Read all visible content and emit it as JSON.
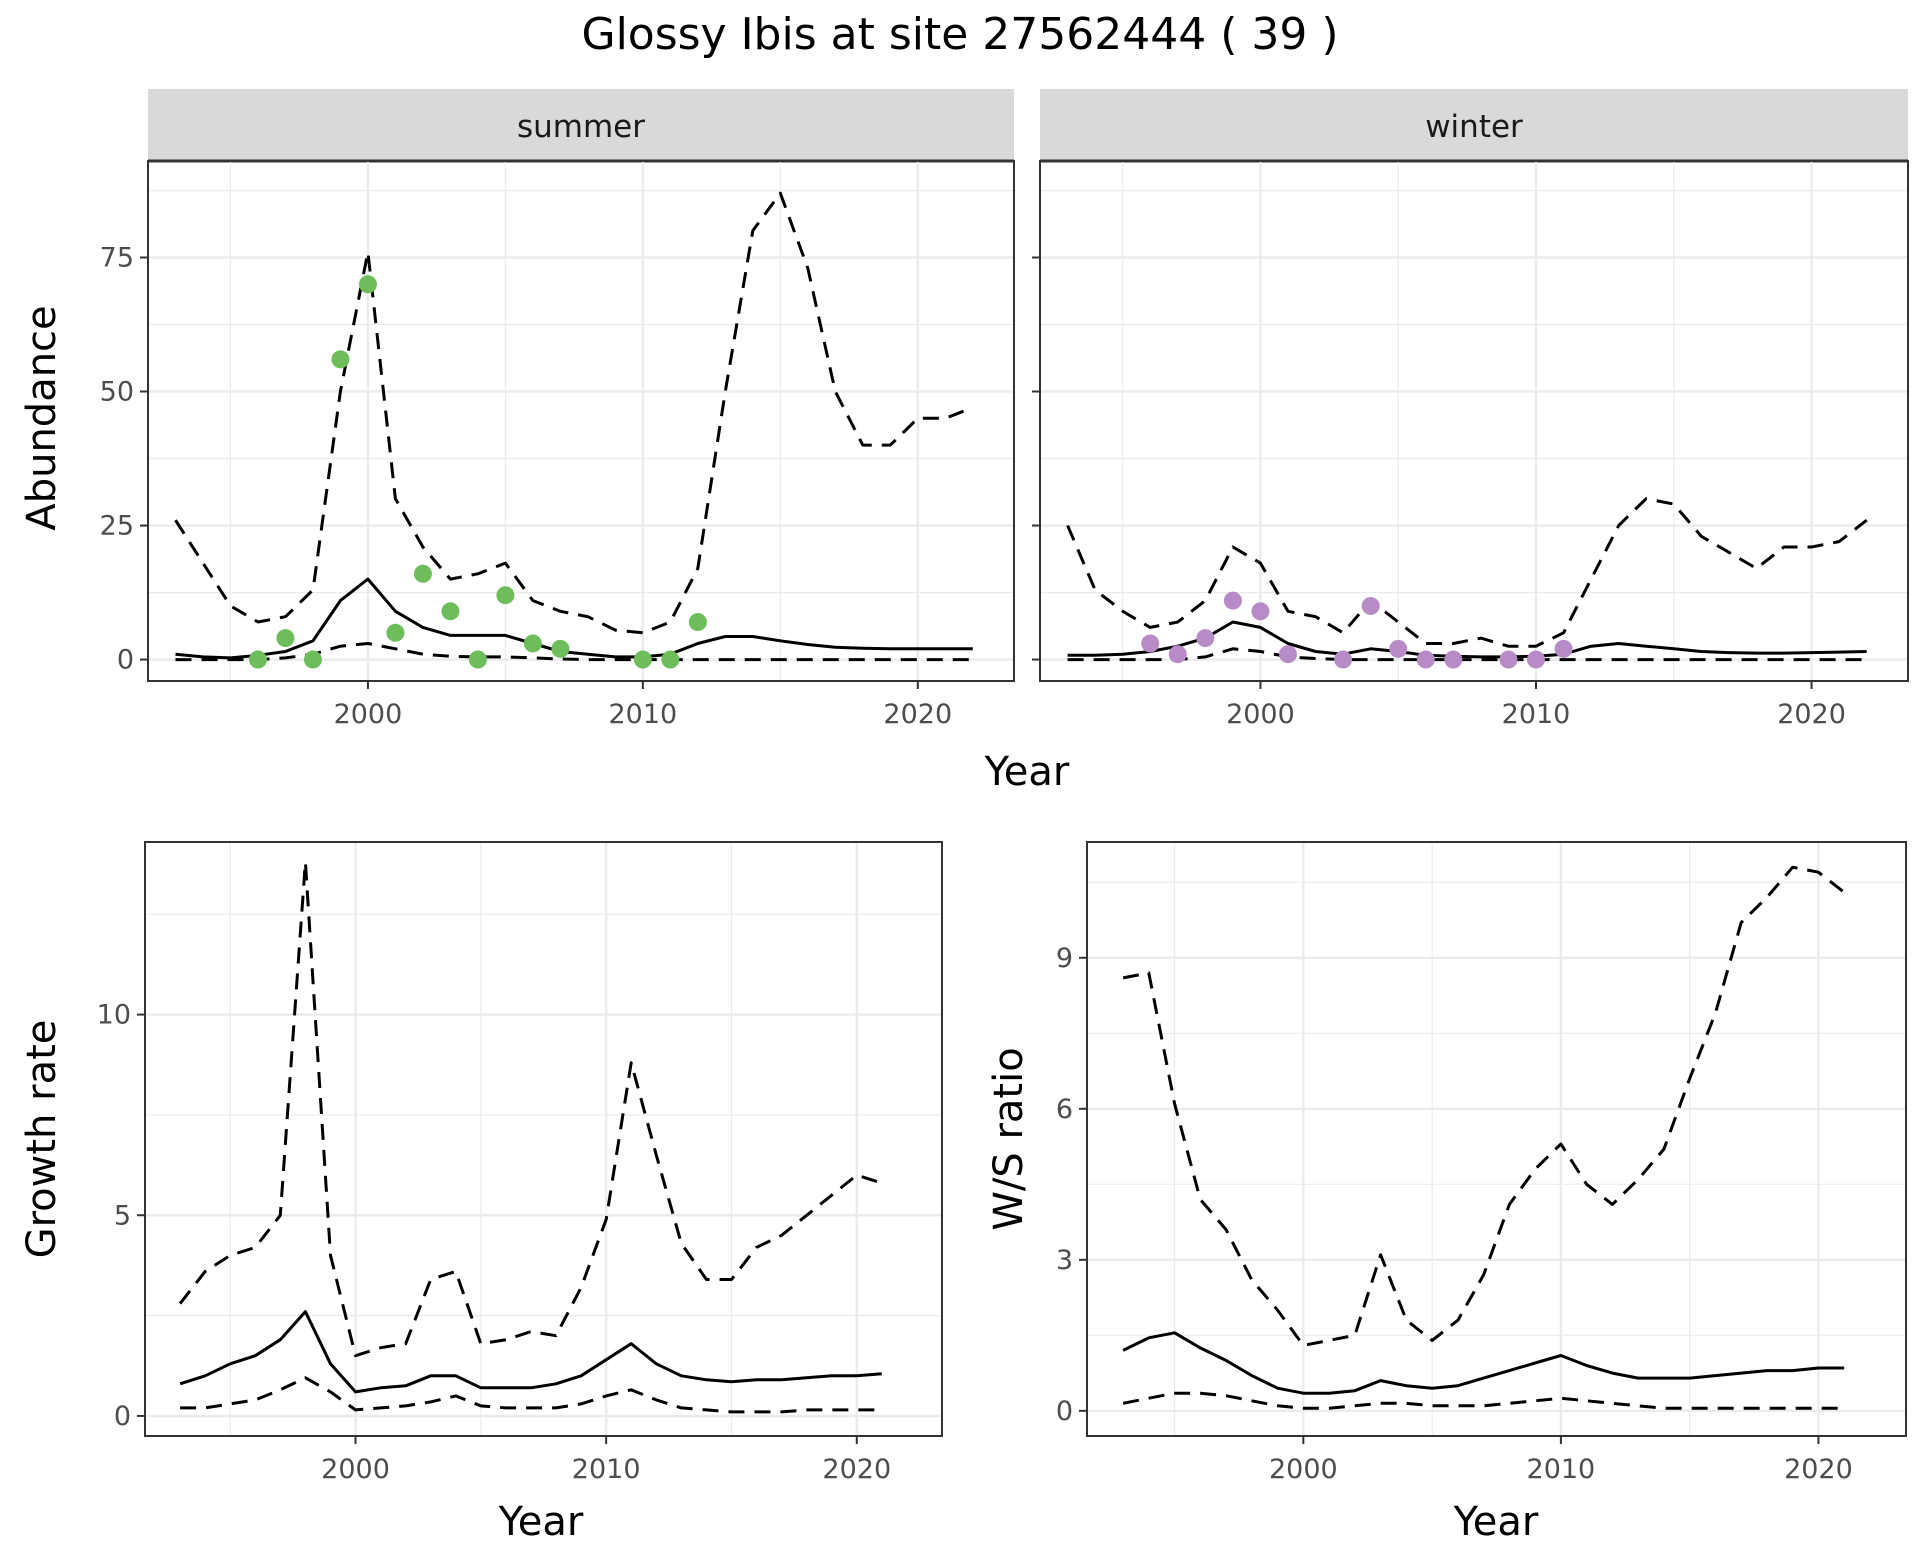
{
  "title": "Glossy Ibis at site 27562444 ( 39 )",
  "colors": {
    "summer_points": "#6dbd5a",
    "winter_points": "#b78bc6",
    "line": "#000000",
    "strip_fill": "#d9d9d9"
  },
  "chart_data": [
    {
      "type": "line",
      "panel": "summer",
      "strip_label": "summer",
      "xlabel": "Year",
      "ylabel": "Abundance",
      "xlim": [
        1992,
        2023.5
      ],
      "ylim": [
        -4,
        93
      ],
      "xticks": [
        2000,
        2010,
        2020
      ],
      "yticks": [
        0,
        25,
        50,
        75
      ],
      "years": [
        1993,
        1994,
        1995,
        1996,
        1997,
        1998,
        1999,
        2000,
        2001,
        2002,
        2003,
        2004,
        2005,
        2006,
        2007,
        2008,
        2009,
        2010,
        2011,
        2012,
        2013,
        2014,
        2015,
        2016,
        2017,
        2018,
        2019,
        2020,
        2021,
        2022
      ],
      "series": [
        {
          "role": "estimate",
          "style": "solid",
          "values": [
            1,
            0.5,
            0.3,
            0.8,
            1.5,
            3.5,
            11,
            15,
            9,
            6,
            4.5,
            4.5,
            4.5,
            3,
            1.5,
            1,
            0.5,
            0.5,
            1,
            3,
            4.3,
            4.3,
            3.5,
            2.8,
            2.3,
            2.1,
            2,
            2,
            2,
            2
          ]
        },
        {
          "role": "upper",
          "style": "dashed",
          "values": [
            26,
            18,
            10,
            7,
            8,
            13,
            50,
            76,
            30,
            21,
            15,
            16,
            18,
            11,
            9,
            8,
            5.5,
            5,
            7,
            17,
            50,
            80,
            87,
            73,
            50,
            40,
            40,
            45,
            45,
            47
          ]
        },
        {
          "role": "lower",
          "style": "dashed",
          "values": [
            0,
            0,
            0,
            0,
            0.3,
            1,
            2.5,
            3,
            2,
            1,
            0.6,
            0.5,
            0.5,
            0.3,
            0.1,
            0,
            0,
            0,
            0,
            0,
            0,
            0,
            0,
            0,
            0,
            0,
            0,
            0,
            0,
            0
          ]
        }
      ],
      "points": {
        "x": [
          1996,
          1997,
          1998,
          1999,
          2000,
          2001,
          2002,
          2003,
          2004,
          2005,
          2006,
          2007,
          2010,
          2011,
          2012
        ],
        "y": [
          0,
          4,
          0,
          56,
          70,
          5,
          16,
          9,
          0,
          12,
          3,
          2,
          0,
          0,
          7
        ]
      }
    },
    {
      "type": "line",
      "panel": "winter",
      "strip_label": "winter",
      "xlabel": "Year",
      "ylabel": "",
      "xlim": [
        1992,
        2023.5
      ],
      "ylim": [
        -4,
        93
      ],
      "xticks": [
        2000,
        2010,
        2020
      ],
      "yticks": [
        0,
        25,
        50,
        75
      ],
      "years": [
        1993,
        1994,
        1995,
        1996,
        1997,
        1998,
        1999,
        2000,
        2001,
        2002,
        2003,
        2004,
        2005,
        2006,
        2007,
        2008,
        2009,
        2010,
        2011,
        2012,
        2013,
        2014,
        2015,
        2016,
        2017,
        2018,
        2019,
        2020,
        2021,
        2022
      ],
      "series": [
        {
          "role": "estimate",
          "style": "solid",
          "values": [
            0.8,
            0.8,
            1,
            1.5,
            2.5,
            4,
            7,
            6,
            3,
            1.5,
            1,
            2,
            1.5,
            0.8,
            0.6,
            0.5,
            0.5,
            0.6,
            1,
            2.5,
            3,
            2.5,
            2,
            1.5,
            1.3,
            1.2,
            1.2,
            1.3,
            1.4,
            1.5
          ]
        },
        {
          "role": "upper",
          "style": "dashed",
          "values": [
            25,
            13,
            9,
            6,
            7,
            11,
            21,
            18,
            9,
            8,
            5,
            11,
            7,
            3,
            3,
            4,
            2.5,
            2.5,
            5,
            15,
            25,
            30,
            29,
            23,
            20,
            17,
            21,
            21,
            22,
            26
          ]
        },
        {
          "role": "lower",
          "style": "dashed",
          "values": [
            0,
            0,
            0,
            0,
            0,
            0.5,
            2,
            1.5,
            0.5,
            0.2,
            0,
            0,
            0,
            0,
            0,
            0,
            0,
            0,
            0,
            0,
            0,
            0,
            0,
            0,
            0,
            0,
            0,
            0,
            0,
            0
          ]
        }
      ],
      "points": {
        "x": [
          1996,
          1997,
          1998,
          1999,
          2000,
          2001,
          2003,
          2004,
          2005,
          2006,
          2007,
          2009,
          2010,
          2011
        ],
        "y": [
          3,
          1,
          4,
          11,
          9,
          1,
          0,
          10,
          2,
          0,
          0,
          0,
          0,
          2
        ]
      }
    },
    {
      "type": "line",
      "panel": "growth",
      "xlabel": "Year",
      "ylabel": "Growth rate",
      "xlim": [
        1991.6,
        2023.4
      ],
      "ylim": [
        -0.5,
        14.3
      ],
      "xticks": [
        2000,
        2010,
        2020
      ],
      "yticks": [
        0,
        5,
        10
      ],
      "years": [
        1993,
        1994,
        1995,
        1996,
        1997,
        1998,
        1999,
        2000,
        2001,
        2002,
        2003,
        2004,
        2005,
        2006,
        2007,
        2008,
        2009,
        2010,
        2011,
        2012,
        2013,
        2014,
        2015,
        2016,
        2017,
        2018,
        2019,
        2020,
        2021
      ],
      "series": [
        {
          "role": "estimate",
          "style": "solid",
          "values": [
            0.8,
            1,
            1.3,
            1.5,
            1.9,
            2.6,
            1.3,
            0.6,
            0.7,
            0.75,
            1,
            1,
            0.7,
            0.7,
            0.7,
            0.8,
            1,
            1.4,
            1.8,
            1.3,
            1,
            0.9,
            0.85,
            0.9,
            0.9,
            0.95,
            1,
            1,
            1.05
          ]
        },
        {
          "role": "upper",
          "style": "dashed",
          "values": [
            2.8,
            3.6,
            4,
            4.2,
            5,
            13.8,
            4,
            1.5,
            1.7,
            1.8,
            3.4,
            3.6,
            1.8,
            1.9,
            2.1,
            2,
            3.2,
            4.9,
            8.8,
            6.5,
            4.3,
            3.4,
            3.4,
            4.2,
            4.5,
            5,
            5.5,
            6,
            5.8
          ]
        },
        {
          "role": "lower",
          "style": "dashed",
          "values": [
            0.2,
            0.2,
            0.3,
            0.4,
            0.65,
            0.95,
            0.6,
            0.15,
            0.2,
            0.25,
            0.35,
            0.5,
            0.25,
            0.2,
            0.2,
            0.2,
            0.3,
            0.5,
            0.65,
            0.4,
            0.2,
            0.15,
            0.1,
            0.1,
            0.1,
            0.15,
            0.15,
            0.15,
            0.15
          ]
        }
      ]
    },
    {
      "type": "line",
      "panel": "ws_ratio",
      "xlabel": "Year",
      "ylabel": "W/S ratio",
      "xlim": [
        1991.6,
        2023.4
      ],
      "ylim": [
        -0.5,
        11.3
      ],
      "xticks": [
        2000,
        2010,
        2020
      ],
      "yticks": [
        0,
        3,
        6,
        9
      ],
      "years": [
        1993,
        1994,
        1995,
        1996,
        1997,
        1998,
        1999,
        2000,
        2001,
        2002,
        2003,
        2004,
        2005,
        2006,
        2007,
        2008,
        2009,
        2010,
        2011,
        2012,
        2013,
        2014,
        2015,
        2016,
        2017,
        2018,
        2019,
        2020,
        2021
      ],
      "series": [
        {
          "role": "estimate",
          "style": "solid",
          "values": [
            1.2,
            1.45,
            1.55,
            1.25,
            1,
            0.7,
            0.45,
            0.35,
            0.35,
            0.4,
            0.6,
            0.5,
            0.45,
            0.5,
            0.65,
            0.8,
            0.95,
            1.1,
            0.9,
            0.75,
            0.65,
            0.65,
            0.65,
            0.7,
            0.75,
            0.8,
            0.8,
            0.85,
            0.85
          ]
        },
        {
          "role": "upper",
          "style": "dashed",
          "values": [
            8.6,
            8.7,
            6.1,
            4.2,
            3.6,
            2.6,
            2,
            1.3,
            1.4,
            1.5,
            3.1,
            1.8,
            1.4,
            1.8,
            2.7,
            4.1,
            4.8,
            5.3,
            4.5,
            4.1,
            4.6,
            5.2,
            6.6,
            7.9,
            9.7,
            10.2,
            10.8,
            10.7,
            10.3
          ]
        },
        {
          "role": "lower",
          "style": "dashed",
          "values": [
            0.15,
            0.25,
            0.35,
            0.35,
            0.3,
            0.2,
            0.1,
            0.05,
            0.05,
            0.1,
            0.15,
            0.15,
            0.1,
            0.1,
            0.1,
            0.15,
            0.2,
            0.25,
            0.2,
            0.15,
            0.1,
            0.05,
            0.05,
            0.05,
            0.05,
            0.05,
            0.05,
            0.05,
            0.05
          ]
        }
      ]
    }
  ]
}
